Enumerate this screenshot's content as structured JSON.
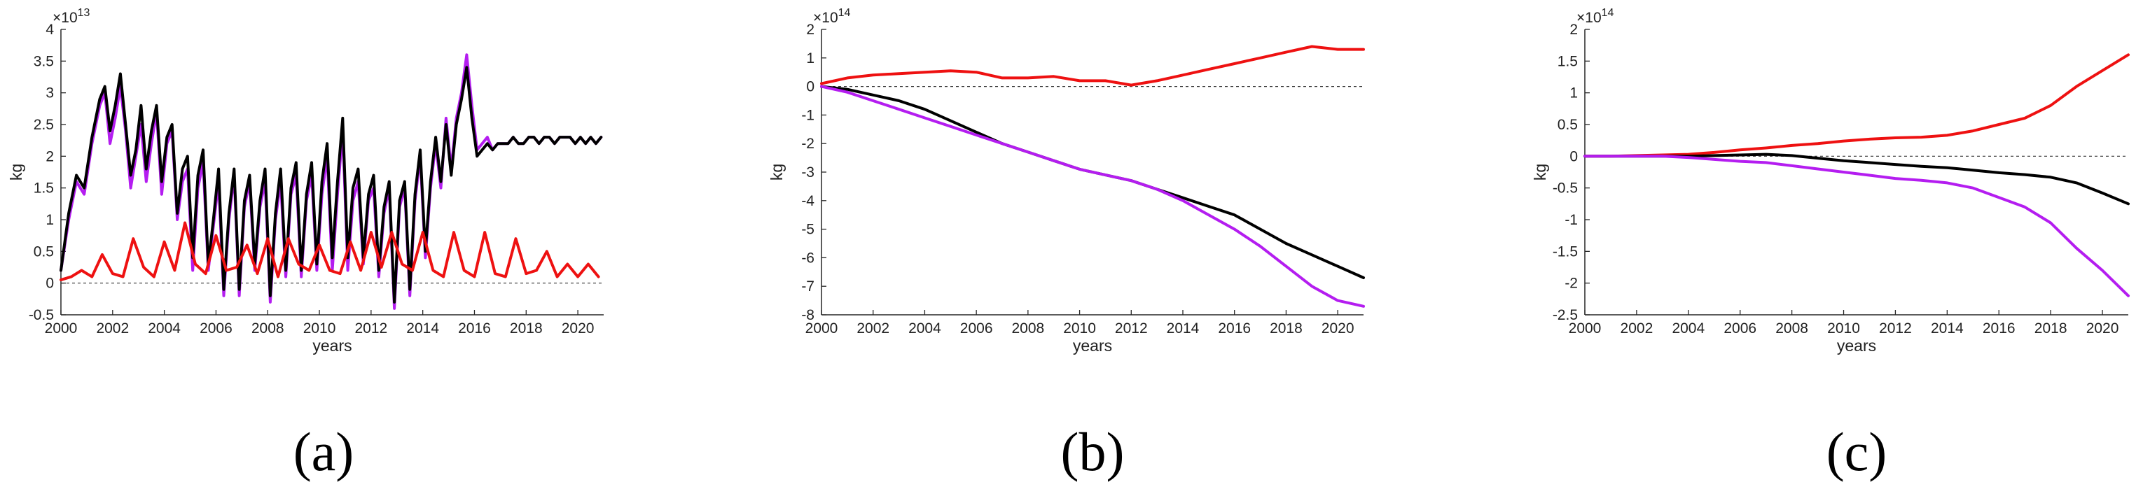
{
  "figure": {
    "panel_labels": [
      "(a)",
      "(b)",
      "(c)"
    ],
    "series_colors": {
      "black": "#000000",
      "purple": "#b41df0",
      "red": "#ee1111"
    }
  },
  "chart_data": [
    {
      "type": "line",
      "panel": "(a)",
      "xlabel": "years",
      "ylabel": "kg",
      "exponent": "×10^13",
      "exponent_base": "×10",
      "exponent_power": "13",
      "xlim": [
        2000,
        2021
      ],
      "ylim": [
        -0.5,
        4
      ],
      "xticks": [
        2000,
        2002,
        2004,
        2006,
        2008,
        2010,
        2012,
        2014,
        2016,
        2018,
        2020
      ],
      "xtick_labels": [
        "2000",
        "2002",
        "2004",
        "2006",
        "2008",
        "2010",
        "2012",
        "2014",
        "2016",
        "2018",
        "2020"
      ],
      "yticks": [
        -0.5,
        0,
        0.5,
        1,
        1.5,
        2,
        2.5,
        3,
        3.5,
        4
      ],
      "ytick_labels": [
        "-0.5",
        "0",
        "0.5",
        "1",
        "1.5",
        "2",
        "2.5",
        "3",
        "3.5",
        "4"
      ],
      "zero_line": true,
      "series": [
        {
          "name": "purple",
          "color": "#b41df0",
          "x": [
            2000.0,
            2000.3,
            2000.6,
            2000.9,
            2001.2,
            2001.5,
            2001.7,
            2001.9,
            2002.1,
            2002.3,
            2002.5,
            2002.7,
            2002.9,
            2003.1,
            2003.3,
            2003.5,
            2003.7,
            2003.9,
            2004.1,
            2004.3,
            2004.5,
            2004.7,
            2004.9,
            2005.1,
            2005.3,
            2005.5,
            2005.7,
            2005.9,
            2006.1,
            2006.3,
            2006.5,
            2006.7,
            2006.9,
            2007.1,
            2007.3,
            2007.5,
            2007.7,
            2007.9,
            2008.1,
            2008.3,
            2008.5,
            2008.7,
            2008.9,
            2009.1,
            2009.3,
            2009.5,
            2009.7,
            2009.9,
            2010.1,
            2010.3,
            2010.5,
            2010.7,
            2010.9,
            2011.1,
            2011.3,
            2011.5,
            2011.7,
            2011.9,
            2012.1,
            2012.3,
            2012.5,
            2012.7,
            2012.9,
            2013.1,
            2013.3,
            2013.5,
            2013.7,
            2013.9,
            2014.1,
            2014.3,
            2014.5,
            2014.7,
            2014.9,
            2015.1,
            2015.3,
            2015.5,
            2015.7,
            2015.9,
            2016.1,
            2016.3,
            2016.5,
            2016.7,
            2016.9,
            2017.1,
            2017.3,
            2017.5,
            2017.7,
            2017.9,
            2018.1,
            2018.3,
            2018.5,
            2018.7,
            2018.9,
            2019.1,
            2019.3,
            2019.5,
            2019.7,
            2019.9,
            2020.1,
            2020.3,
            2020.5,
            2020.7,
            2020.9
          ],
          "y": [
            0.2,
            1.0,
            1.6,
            1.4,
            2.2,
            2.8,
            3.0,
            2.2,
            2.6,
            3.1,
            2.4,
            1.5,
            2.0,
            2.5,
            1.6,
            2.2,
            2.7,
            1.4,
            2.2,
            2.4,
            1.0,
            1.6,
            1.8,
            0.2,
            1.5,
            1.9,
            0.2,
            0.9,
            1.6,
            -0.2,
            1.0,
            1.7,
            -0.2,
            1.2,
            1.6,
            0.2,
            1.2,
            1.6,
            -0.3,
            1.0,
            1.6,
            0.1,
            1.4,
            1.7,
            0.1,
            1.3,
            1.7,
            0.2,
            1.4,
            2.0,
            0.2,
            1.4,
            2.4,
            0.2,
            1.3,
            1.6,
            0.3,
            1.3,
            1.5,
            0.1,
            1.1,
            1.5,
            -0.4,
            1.2,
            1.5,
            -0.2,
            1.3,
            2.0,
            0.4,
            1.5,
            2.2,
            1.5,
            2.6,
            1.8,
            2.6,
            3.0,
            3.6,
            2.8,
            2.1,
            2.2,
            2.3,
            2.1,
            2.2,
            2.2,
            2.2,
            2.3,
            2.2,
            2.2,
            2.3,
            2.3,
            2.2,
            2.3,
            2.3,
            2.2,
            2.3,
            2.3,
            2.3,
            2.2,
            2.3,
            2.2,
            2.3,
            2.2,
            2.3
          ]
        },
        {
          "name": "black",
          "color": "#000000",
          "x": [
            2000.0,
            2000.3,
            2000.6,
            2000.9,
            2001.2,
            2001.5,
            2001.7,
            2001.9,
            2002.1,
            2002.3,
            2002.5,
            2002.7,
            2002.9,
            2003.1,
            2003.3,
            2003.5,
            2003.7,
            2003.9,
            2004.1,
            2004.3,
            2004.5,
            2004.7,
            2004.9,
            2005.1,
            2005.3,
            2005.5,
            2005.7,
            2005.9,
            2006.1,
            2006.3,
            2006.5,
            2006.7,
            2006.9,
            2007.1,
            2007.3,
            2007.5,
            2007.7,
            2007.9,
            2008.1,
            2008.3,
            2008.5,
            2008.7,
            2008.9,
            2009.1,
            2009.3,
            2009.5,
            2009.7,
            2009.9,
            2010.1,
            2010.3,
            2010.5,
            2010.7,
            2010.9,
            2011.1,
            2011.3,
            2011.5,
            2011.7,
            2011.9,
            2012.1,
            2012.3,
            2012.5,
            2012.7,
            2012.9,
            2013.1,
            2013.3,
            2013.5,
            2013.7,
            2013.9,
            2014.1,
            2014.3,
            2014.5,
            2014.7,
            2014.9,
            2015.1,
            2015.3,
            2015.5,
            2015.7,
            2015.9,
            2016.1,
            2016.3,
            2016.5,
            2016.7,
            2016.9,
            2017.1,
            2017.3,
            2017.5,
            2017.7,
            2017.9,
            2018.1,
            2018.3,
            2018.5,
            2018.7,
            2018.9,
            2019.1,
            2019.3,
            2019.5,
            2019.7,
            2019.9,
            2020.1,
            2020.3,
            2020.5,
            2020.7,
            2020.9
          ],
          "y": [
            0.2,
            1.1,
            1.7,
            1.5,
            2.3,
            2.9,
            3.1,
            2.4,
            2.8,
            3.3,
            2.5,
            1.7,
            2.1,
            2.8,
            1.8,
            2.4,
            2.8,
            1.6,
            2.3,
            2.5,
            1.1,
            1.8,
            2.0,
            0.4,
            1.7,
            2.1,
            0.3,
            1.0,
            1.8,
            -0.1,
            1.1,
            1.8,
            -0.1,
            1.3,
            1.7,
            0.3,
            1.3,
            1.8,
            -0.2,
            1.1,
            1.8,
            0.2,
            1.5,
            1.9,
            0.2,
            1.4,
            1.9,
            0.3,
            1.6,
            2.2,
            0.4,
            1.6,
            2.6,
            0.4,
            1.5,
            1.8,
            0.4,
            1.4,
            1.7,
            0.2,
            1.2,
            1.6,
            -0.3,
            1.3,
            1.6,
            -0.1,
            1.4,
            2.1,
            0.5,
            1.6,
            2.3,
            1.6,
            2.5,
            1.7,
            2.5,
            2.9,
            3.4,
            2.6,
            2.0,
            2.1,
            2.2,
            2.1,
            2.2,
            2.2,
            2.2,
            2.3,
            2.2,
            2.2,
            2.3,
            2.3,
            2.2,
            2.3,
            2.3,
            2.2,
            2.3,
            2.3,
            2.3,
            2.2,
            2.3,
            2.2,
            2.3,
            2.2,
            2.3
          ]
        },
        {
          "name": "red",
          "color": "#ee1111",
          "x": [
            2000.0,
            2000.4,
            2000.8,
            2001.2,
            2001.6,
            2002.0,
            2002.4,
            2002.8,
            2003.2,
            2003.6,
            2004.0,
            2004.4,
            2004.8,
            2005.2,
            2005.6,
            2006.0,
            2006.4,
            2006.8,
            2007.2,
            2007.6,
            2008.0,
            2008.4,
            2008.8,
            2009.2,
            2009.6,
            2010.0,
            2010.4,
            2010.8,
            2011.2,
            2011.6,
            2012.0,
            2012.4,
            2012.8,
            2013.2,
            2013.6,
            2014.0,
            2014.4,
            2014.8,
            2015.2,
            2015.6,
            2016.0,
            2016.4,
            2016.8,
            2017.2,
            2017.6,
            2018.0,
            2018.4,
            2018.8,
            2019.2,
            2019.6,
            2020.0,
            2020.4,
            2020.8
          ],
          "y": [
            0.05,
            0.1,
            0.2,
            0.1,
            0.45,
            0.15,
            0.1,
            0.7,
            0.25,
            0.1,
            0.65,
            0.2,
            0.95,
            0.3,
            0.15,
            0.75,
            0.2,
            0.25,
            0.6,
            0.15,
            0.7,
            0.1,
            0.7,
            0.3,
            0.2,
            0.6,
            0.2,
            0.15,
            0.65,
            0.2,
            0.8,
            0.25,
            0.8,
            0.3,
            0.2,
            0.8,
            0.2,
            0.1,
            0.8,
            0.2,
            0.1,
            0.8,
            0.15,
            0.1,
            0.7,
            0.15,
            0.2,
            0.5,
            0.1,
            0.3,
            0.1,
            0.3,
            0.1
          ]
        }
      ]
    },
    {
      "type": "line",
      "panel": "(b)",
      "xlabel": "years",
      "ylabel": "kg",
      "exponent": "×10^14",
      "exponent_base": "×10",
      "exponent_power": "14",
      "xlim": [
        2000,
        2021
      ],
      "ylim": [
        -8,
        2
      ],
      "xticks": [
        2000,
        2002,
        2004,
        2006,
        2008,
        2010,
        2012,
        2014,
        2016,
        2018,
        2020
      ],
      "xtick_labels": [
        "2000",
        "2002",
        "2004",
        "2006",
        "2008",
        "2010",
        "2012",
        "2014",
        "2016",
        "2018",
        "2020"
      ],
      "yticks": [
        -8,
        -7,
        -6,
        -5,
        -4,
        -3,
        -2,
        -1,
        0,
        1,
        2
      ],
      "ytick_labels": [
        "-8",
        "-7",
        "-6",
        "-5",
        "-4",
        "-3",
        "-2",
        "-1",
        "0",
        "1",
        "2"
      ],
      "zero_line": true,
      "series": [
        {
          "name": "red",
          "color": "#ee1111",
          "x": [
            2000,
            2001,
            2002,
            2003,
            2004,
            2005,
            2006,
            2007,
            2008,
            2009,
            2010,
            2011,
            2012,
            2013,
            2014,
            2015,
            2016,
            2017,
            2018,
            2019,
            2020,
            2021
          ],
          "y": [
            0.1,
            0.3,
            0.4,
            0.45,
            0.5,
            0.55,
            0.5,
            0.3,
            0.3,
            0.35,
            0.2,
            0.2,
            0.05,
            0.2,
            0.4,
            0.6,
            0.8,
            1.0,
            1.2,
            1.4,
            1.3,
            1.3
          ]
        },
        {
          "name": "black",
          "color": "#000000",
          "x": [
            2000,
            2001,
            2002,
            2003,
            2004,
            2005,
            2006,
            2007,
            2008,
            2009,
            2010,
            2011,
            2012,
            2013,
            2014,
            2015,
            2016,
            2017,
            2018,
            2019,
            2020,
            2021
          ],
          "y": [
            0,
            -0.1,
            -0.3,
            -0.5,
            -0.8,
            -1.2,
            -1.6,
            -2.0,
            -2.3,
            -2.6,
            -2.9,
            -3.1,
            -3.3,
            -3.6,
            -3.9,
            -4.2,
            -4.5,
            -5.0,
            -5.5,
            -5.9,
            -6.3,
            -6.7
          ]
        },
        {
          "name": "purple",
          "color": "#b41df0",
          "x": [
            2000,
            2001,
            2002,
            2003,
            2004,
            2005,
            2006,
            2007,
            2008,
            2009,
            2010,
            2011,
            2012,
            2013,
            2014,
            2015,
            2016,
            2017,
            2018,
            2019,
            2020,
            2021
          ],
          "y": [
            0,
            -0.2,
            -0.5,
            -0.8,
            -1.1,
            -1.4,
            -1.7,
            -2.0,
            -2.3,
            -2.6,
            -2.9,
            -3.1,
            -3.3,
            -3.6,
            -4.0,
            -4.5,
            -5.0,
            -5.6,
            -6.3,
            -7.0,
            -7.5,
            -7.7
          ]
        }
      ]
    },
    {
      "type": "line",
      "panel": "(c)",
      "xlabel": "years",
      "ylabel": "kg",
      "exponent": "×10^14",
      "exponent_base": "×10",
      "exponent_power": "14",
      "xlim": [
        2000,
        2021
      ],
      "ylim": [
        -2.5,
        2
      ],
      "xticks": [
        2000,
        2002,
        2004,
        2006,
        2008,
        2010,
        2012,
        2014,
        2016,
        2018,
        2020
      ],
      "xtick_labels": [
        "2000",
        "2002",
        "2004",
        "2006",
        "2008",
        "2010",
        "2012",
        "2014",
        "2016",
        "2018",
        "2020"
      ],
      "yticks": [
        -2.5,
        -2,
        -1.5,
        -1,
        -0.5,
        0,
        0.5,
        1,
        1.5,
        2
      ],
      "ytick_labels": [
        "-2.5",
        "-2",
        "-1.5",
        "-1",
        "-0.5",
        "0",
        "0.5",
        "1",
        "1.5",
        "2"
      ],
      "zero_line": true,
      "series": [
        {
          "name": "red",
          "color": "#ee1111",
          "x": [
            2000,
            2001,
            2002,
            2003,
            2004,
            2005,
            2006,
            2007,
            2008,
            2009,
            2010,
            2011,
            2012,
            2013,
            2014,
            2015,
            2016,
            2017,
            2018,
            2019,
            2020,
            2021
          ],
          "y": [
            0,
            0,
            0.01,
            0.02,
            0.03,
            0.06,
            0.1,
            0.13,
            0.17,
            0.2,
            0.24,
            0.27,
            0.29,
            0.3,
            0.33,
            0.4,
            0.5,
            0.6,
            0.8,
            1.1,
            1.35,
            1.6
          ]
        },
        {
          "name": "black",
          "color": "#000000",
          "x": [
            2000,
            2001,
            2002,
            2003,
            2004,
            2005,
            2006,
            2007,
            2008,
            2009,
            2010,
            2011,
            2012,
            2013,
            2014,
            2015,
            2016,
            2017,
            2018,
            2019,
            2020,
            2021
          ],
          "y": [
            0,
            0,
            0,
            0,
            0,
            0.01,
            0.02,
            0.03,
            0.01,
            -0.03,
            -0.07,
            -0.1,
            -0.13,
            -0.16,
            -0.18,
            -0.22,
            -0.26,
            -0.29,
            -0.33,
            -0.42,
            -0.58,
            -0.75
          ]
        },
        {
          "name": "purple",
          "color": "#b41df0",
          "x": [
            2000,
            2001,
            2002,
            2003,
            2004,
            2005,
            2006,
            2007,
            2008,
            2009,
            2010,
            2011,
            2012,
            2013,
            2014,
            2015,
            2016,
            2017,
            2018,
            2019,
            2020,
            2021
          ],
          "y": [
            0,
            0,
            0,
            0,
            -0.02,
            -0.05,
            -0.08,
            -0.1,
            -0.15,
            -0.2,
            -0.25,
            -0.3,
            -0.35,
            -0.38,
            -0.42,
            -0.5,
            -0.65,
            -0.8,
            -1.05,
            -1.45,
            -1.8,
            -2.2
          ]
        }
      ]
    }
  ]
}
